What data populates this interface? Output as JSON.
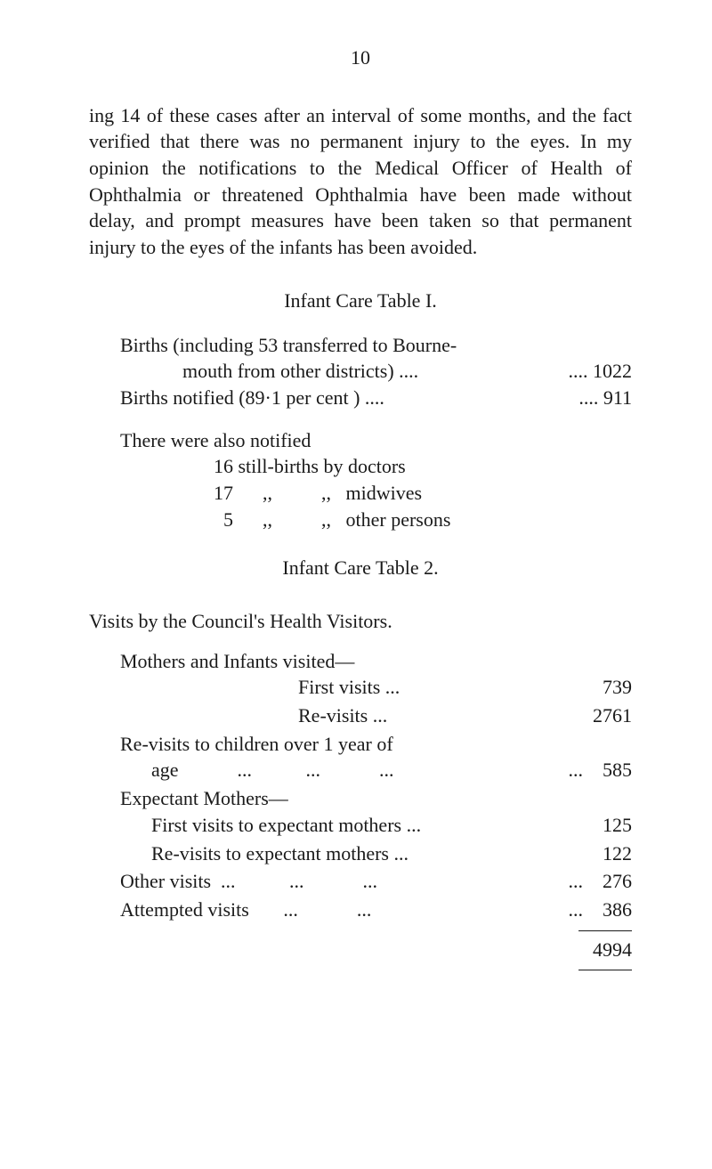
{
  "page_number": "10",
  "paragraph1": "ing 14 of these cases after an interval of some months, and the fact verified that there was no permanent injury to the eyes. In my opinion the notifications to the Medical Officer of Health of Ophthalmia or threatened Ophthalmia have been made without delay, and prompt measures have been taken so that permanent injury to the eyes of the infants has been avoided.",
  "table1_heading": "Infant Care Table I.",
  "births_line1_left": "Births (including 53 transferred to Bourne-",
  "births_line2_left": "mouth from other districts)    ....",
  "births_line2_right": "....   1022",
  "births_notified_left": "Births notified (89·1 per cent )    ....",
  "births_notified_right": "....    911",
  "there_were": "There were also notified",
  "stillbirths_1": "16 still-births by doctors",
  "stillbirths_2": "17      ,,          ,,   midwives",
  "stillbirths_3": "  5      ,,          ,,   other persons",
  "table2_heading": "Infant Care Table 2.",
  "visits_by": "Visits by the Council's Health Visitors.",
  "mothers_visited": "Mothers and Infants visited—",
  "first_visits_label": "First visits ...",
  "first_visits_val": "739",
  "re_visits_label": "Re-visits     ...",
  "re_visits_val": "2761",
  "revisits_children_l1": "Re-visits to children over 1 year of",
  "revisits_children_l2": "age            ...           ...            ...",
  "revisits_children_val": "...    585",
  "expectant_mothers": "Expectant Mothers—",
  "first_expect_label": "First visits to expectant mothers ...",
  "first_expect_val": "125",
  "re_expect_label": "Re-visits to expectant mothers  ...",
  "re_expect_val": "122",
  "other_visits_label": "Other visits  ...           ...            ...",
  "other_visits_val": "...    276",
  "attempted_label": "Attempted visits       ...            ...",
  "attempted_val": "...    386",
  "total": "4994"
}
